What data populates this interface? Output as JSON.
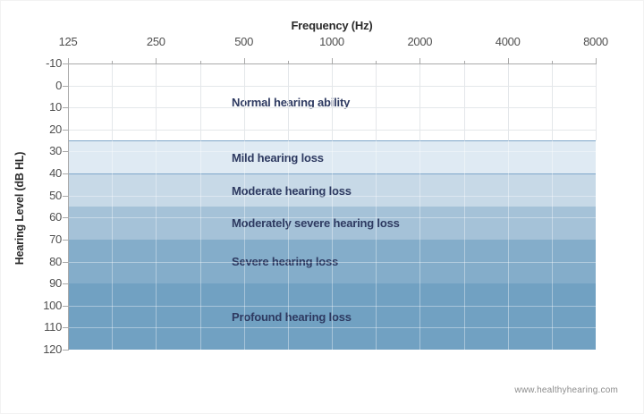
{
  "figure": {
    "footer_source": "www.healthyhearing.com"
  },
  "chart_data": {
    "type": "area",
    "subtype": "audiogram-severity-bands",
    "title": "",
    "xlabel": "Frequency (Hz)",
    "ylabel": "Hearing Level (dB HL)",
    "x_scale": "log2",
    "xlim": [
      125,
      8000
    ],
    "x_ticks": [
      125,
      250,
      500,
      1000,
      2000,
      4000,
      8000
    ],
    "x_minor_ticks_per_octave": 1,
    "ylim": [
      -10,
      120
    ],
    "y_ticks": [
      -10,
      0,
      10,
      20,
      30,
      40,
      50,
      60,
      70,
      80,
      90,
      100,
      110,
      120
    ],
    "y_direction": "down",
    "grid": true,
    "legend_position": "none",
    "bands": [
      {
        "label": "Normal hearing ability",
        "from_db": -10,
        "to_db": 25,
        "color": "#ffffff",
        "top_edge": null
      },
      {
        "label": "Mild hearing loss",
        "from_db": 25,
        "to_db": 40,
        "color": "#dfeaf3",
        "top_edge": "#7ea6c9"
      },
      {
        "label": "Moderate hearing loss",
        "from_db": 40,
        "to_db": 55,
        "color": "#c7d9e7",
        "top_edge": "#7ea6c9"
      },
      {
        "label": "Moderately severe hearing loss",
        "from_db": 55,
        "to_db": 70,
        "color": "#a5c2d8",
        "top_edge": null
      },
      {
        "label": "Severe hearing loss",
        "from_db": 70,
        "to_db": 90,
        "color": "#84adca",
        "top_edge": null
      },
      {
        "label": "Profound hearing loss",
        "from_db": 90,
        "to_db": 120,
        "color": "#71a1c2",
        "top_edge": null
      }
    ],
    "colors": {
      "band_label": "#2e3a61",
      "axis_line": "#a9a9a9",
      "tick_text": "#4f4f4f",
      "axis_title": "#2b2b2b",
      "grid_on_white": "#e4e7ea",
      "grid_on_bands": "rgba(255,255,255,0.38)",
      "footer_text": "#8c8c8c"
    }
  }
}
